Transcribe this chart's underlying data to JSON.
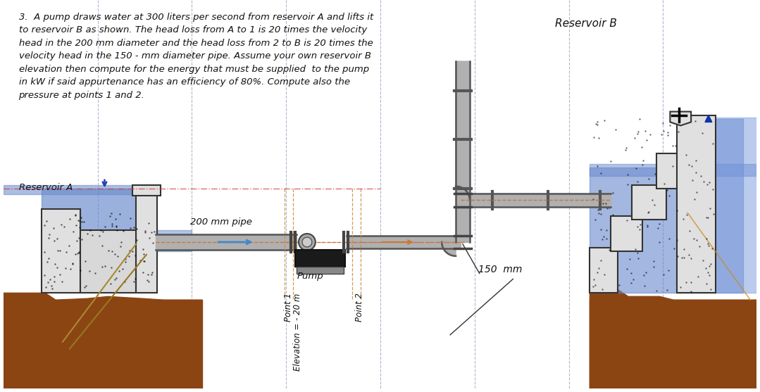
{
  "bg_color": "#ffffff",
  "blue_water": "#6688cc",
  "blue_water2": "#7799dd",
  "brown_ground": "#8B4513",
  "pipe_gray": "#b0b0b0",
  "pipe_outline": "#555555",
  "concrete_gray": "#e0e0e0",
  "concrete_outline": "#333333",
  "grid_line_color": "#7788aa",
  "dashed_orange": "#cc7733",
  "dashed_red": "#cc3333",
  "problem_text": "3.  A pump draws water at 300 liters per second from reservoir A and lifts it\nto reservoir B as shown. The head loss from A to 1 is 20 times the velocity\nhead in the 200 mm diameter and the head loss from 2 to B is 20 times the\nvelocity head in the 150 - mm diameter pipe. Assume your own reservoir B\nelevation then compute for the energy that must be supplied  to the pump\nin kW if said appurtenance has an efficiency of 80%. Compute also the\npressure at points 1 and 2.",
  "label_res_a": "Reservoir A",
  "label_res_b": "Reservoir B",
  "label_200mm": "200 mm pipe",
  "label_150mm": "150  mm",
  "label_point1": "Point 1",
  "label_elev": "Elevation = - 20 m",
  "label_point2": "Point 2",
  "label_pump": "Pump"
}
